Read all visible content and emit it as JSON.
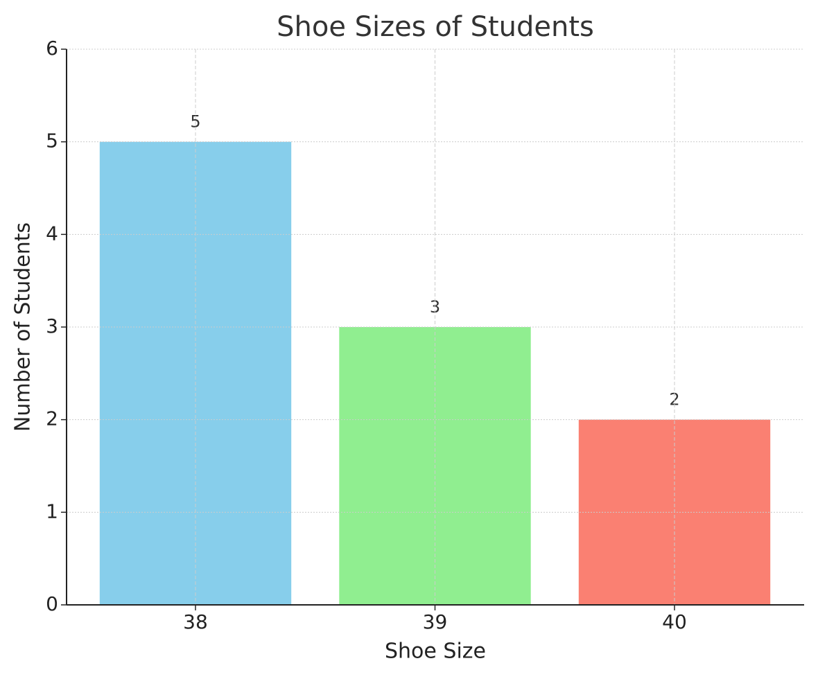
{
  "chart_data": {
    "type": "bar",
    "title": "Shoe Sizes of Students",
    "x_label": "Shoe Size",
    "y_label": "Number of Students",
    "categories": [
      "38",
      "39",
      "40"
    ],
    "values": [
      5,
      3,
      2
    ],
    "colors": [
      "#87ceeb",
      "#90ee90",
      "#fa8072"
    ],
    "ylim": [
      0,
      6
    ],
    "yticks": [
      0,
      1,
      2,
      3,
      4,
      5,
      6
    ],
    "grid": true
  }
}
